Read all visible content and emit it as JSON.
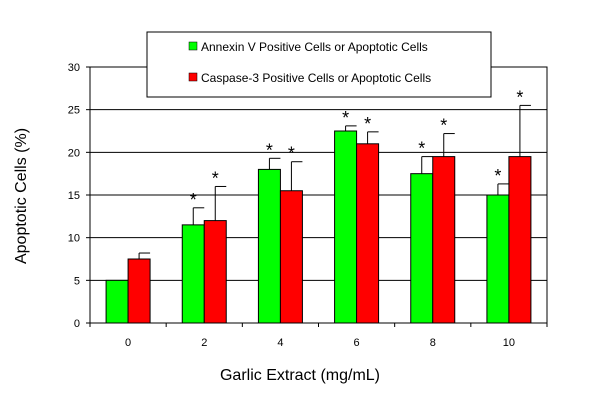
{
  "chart_data": {
    "type": "bar",
    "title": "",
    "xlabel": "Garlic Extract (mg/mL)",
    "ylabel": "Apoptotic Cells (%)",
    "ylim": [
      0,
      30
    ],
    "yticks": [
      0,
      5,
      10,
      15,
      20,
      25,
      30
    ],
    "grid": true,
    "legend_position": "top",
    "categories": [
      "0",
      "2",
      "4",
      "6",
      "8",
      "10"
    ],
    "series": [
      {
        "name": "Annexin V Positive Cells or Apoptotic Cells",
        "color": "#00ff00",
        "values": [
          5.0,
          11.5,
          18.0,
          22.5,
          17.5,
          15.0
        ],
        "error": [
          0,
          2.0,
          1.3,
          0.6,
          2.0,
          1.3
        ],
        "significant": [
          false,
          true,
          true,
          true,
          true,
          true
        ]
      },
      {
        "name": "Caspase-3 Positive Cells or Apoptotic Cells",
        "color": "#ff0000",
        "values": [
          7.5,
          12.0,
          15.5,
          21.0,
          19.5,
          19.5
        ],
        "error": [
          0.7,
          4.0,
          3.4,
          1.4,
          2.7,
          6.0
        ],
        "significant": [
          false,
          true,
          true,
          true,
          true,
          true
        ]
      }
    ],
    "significance_marker": "*"
  }
}
